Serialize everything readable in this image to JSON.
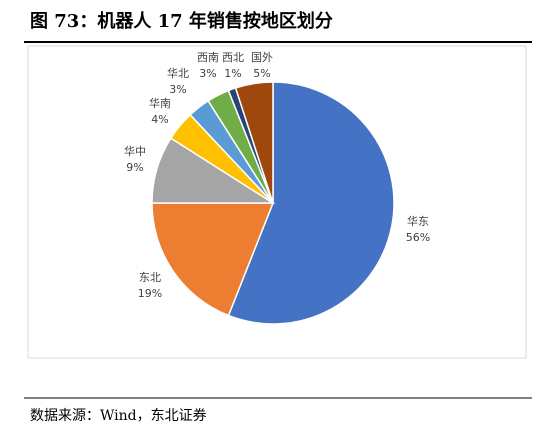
{
  "chart_data": {
    "type": "pie",
    "title": "图 73：机器人 17 年销售按地区划分",
    "categories": [
      "华东",
      "东北",
      "华中",
      "华南",
      "华北",
      "西南",
      "西北",
      "国外"
    ],
    "values": [
      56,
      19,
      9,
      4,
      3,
      3,
      1,
      5
    ],
    "value_labels": [
      "56%",
      "19%",
      "9%",
      "4%",
      "3%",
      "3%",
      "1%",
      "5%"
    ],
    "colors": [
      "#4472c4",
      "#ed7d31",
      "#a5a5a5",
      "#ffc000",
      "#5b9bd5",
      "#70ad47",
      "#264478",
      "#9e480e"
    ],
    "source": "数据来源：Wind，东北证券"
  }
}
